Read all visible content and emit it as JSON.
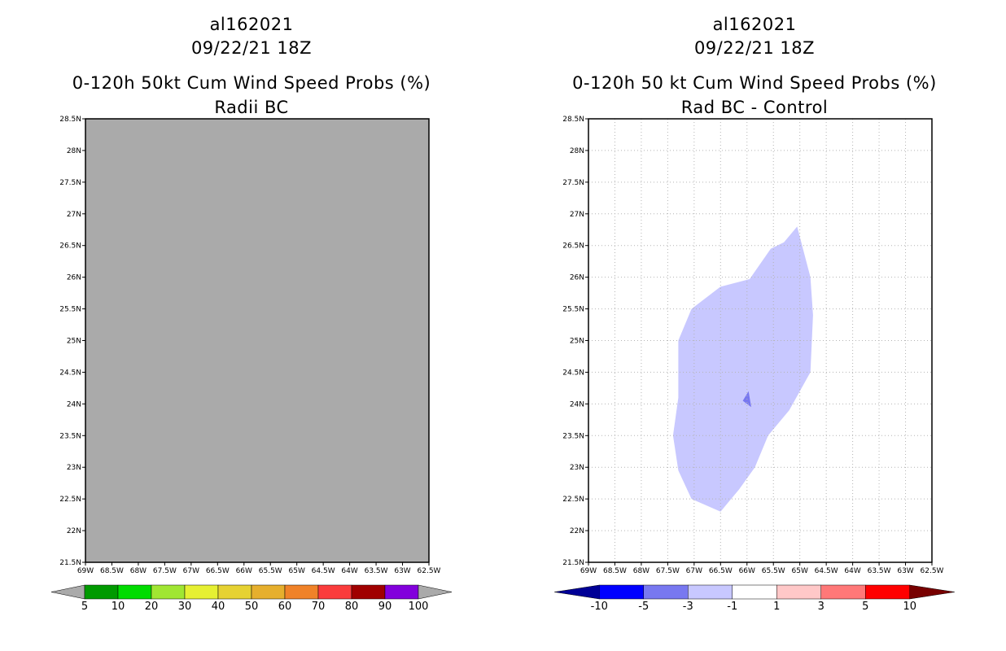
{
  "panels": [
    {
      "storm_id": "al162021",
      "datetime": "09/22/21 18Z",
      "title": "0-120h 50kt Cum Wind Speed Probs (%)",
      "subtitle": "Radii BC"
    },
    {
      "storm_id": "al162021",
      "datetime": "09/22/21 18Z",
      "title": "0-120h 50 kt Cum Wind Speed Probs (%)",
      "subtitle": "Rad BC - Control"
    }
  ],
  "chart_data": [
    {
      "type": "heatmap",
      "title": "0-120h 50kt Cum Wind Speed Probs (%)",
      "subtitle": "Radii BC",
      "xlim": [
        -69,
        -62.5
      ],
      "ylim": [
        21.5,
        28.5
      ],
      "x_ticks": [
        "69W",
        "68.5W",
        "68W",
        "67.5W",
        "67W",
        "66.5W",
        "66W",
        "65.5W",
        "65W",
        "64.5W",
        "64W",
        "63.5W",
        "63W",
        "62.5W"
      ],
      "y_ticks": [
        "21.5N",
        "22N",
        "22.5N",
        "23N",
        "23.5N",
        "24N",
        "24.5N",
        "25N",
        "25.5N",
        "26N",
        "26.5N",
        "27N",
        "27.5N",
        "28N",
        "28.5N"
      ],
      "grid": false,
      "field": "uniform gray (no data above 5%)",
      "field_color": "#aaaaaa",
      "colorbar": {
        "labels": [
          "5",
          "10",
          "20",
          "30",
          "40",
          "50",
          "60",
          "70",
          "80",
          "90",
          "100"
        ],
        "colors": [
          "#009a00",
          "#00dc00",
          "#a0e632",
          "#e6f032",
          "#e6d232",
          "#e6af2d",
          "#f08228",
          "#fa3c3c",
          "#a00000",
          "#8200dc"
        ],
        "under_color": "#aaaaaa",
        "over_color": "#aaaaaa"
      }
    },
    {
      "type": "heatmap",
      "title": "0-120h 50 kt Cum Wind Speed Probs (%)",
      "subtitle": "Rad BC - Control",
      "xlim": [
        -69,
        -62.5
      ],
      "ylim": [
        21.5,
        28.5
      ],
      "x_ticks": [
        "69W",
        "68.5W",
        "68W",
        "67.5W",
        "67W",
        "66.5W",
        "66W",
        "65.5W",
        "65W",
        "64.5W",
        "64W",
        "63.5W",
        "63W",
        "62.5W"
      ],
      "y_ticks": [
        "21.5N",
        "22N",
        "22.5N",
        "23N",
        "23.5N",
        "24N",
        "24.5N",
        "25N",
        "25.5N",
        "26N",
        "26.5N",
        "27N",
        "27.5N",
        "28N",
        "28.5N"
      ],
      "grid": true,
      "regions": [
        {
          "name": "difference -3 to -1",
          "color": "#c8c8ff",
          "polygon_lonlat": [
            [
              -65.05,
              26.8
            ],
            [
              -64.8,
              26.0
            ],
            [
              -64.75,
              25.4
            ],
            [
              -64.8,
              24.5
            ],
            [
              -65.2,
              23.9
            ],
            [
              -65.6,
              23.5
            ],
            [
              -65.85,
              23.0
            ],
            [
              -66.15,
              22.65
            ],
            [
              -66.5,
              22.3
            ],
            [
              -67.05,
              22.5
            ],
            [
              -67.3,
              22.95
            ],
            [
              -67.4,
              23.5
            ],
            [
              -67.3,
              24.1
            ],
            [
              -67.3,
              25.0
            ],
            [
              -67.05,
              25.5
            ],
            [
              -66.5,
              25.85
            ],
            [
              -65.95,
              25.97
            ],
            [
              -65.55,
              26.45
            ],
            [
              -65.3,
              26.55
            ]
          ]
        },
        {
          "name": "difference -5 to -3",
          "color": "#7878f0",
          "polygon_lonlat": [
            [
              -65.97,
              24.2
            ],
            [
              -65.92,
              23.95
            ],
            [
              -66.08,
              24.05
            ]
          ]
        }
      ],
      "colorbar": {
        "labels": [
          "-10",
          "-5",
          "-3",
          "-1",
          "1",
          "3",
          "5",
          "10"
        ],
        "colors": [
          "#0000ff",
          "#7878f0",
          "#c8c8ff",
          "#ffffff",
          "#ffc8c8",
          "#ff7878",
          "#ff0000"
        ],
        "under_color": "#000096",
        "over_color": "#780000"
      }
    }
  ]
}
